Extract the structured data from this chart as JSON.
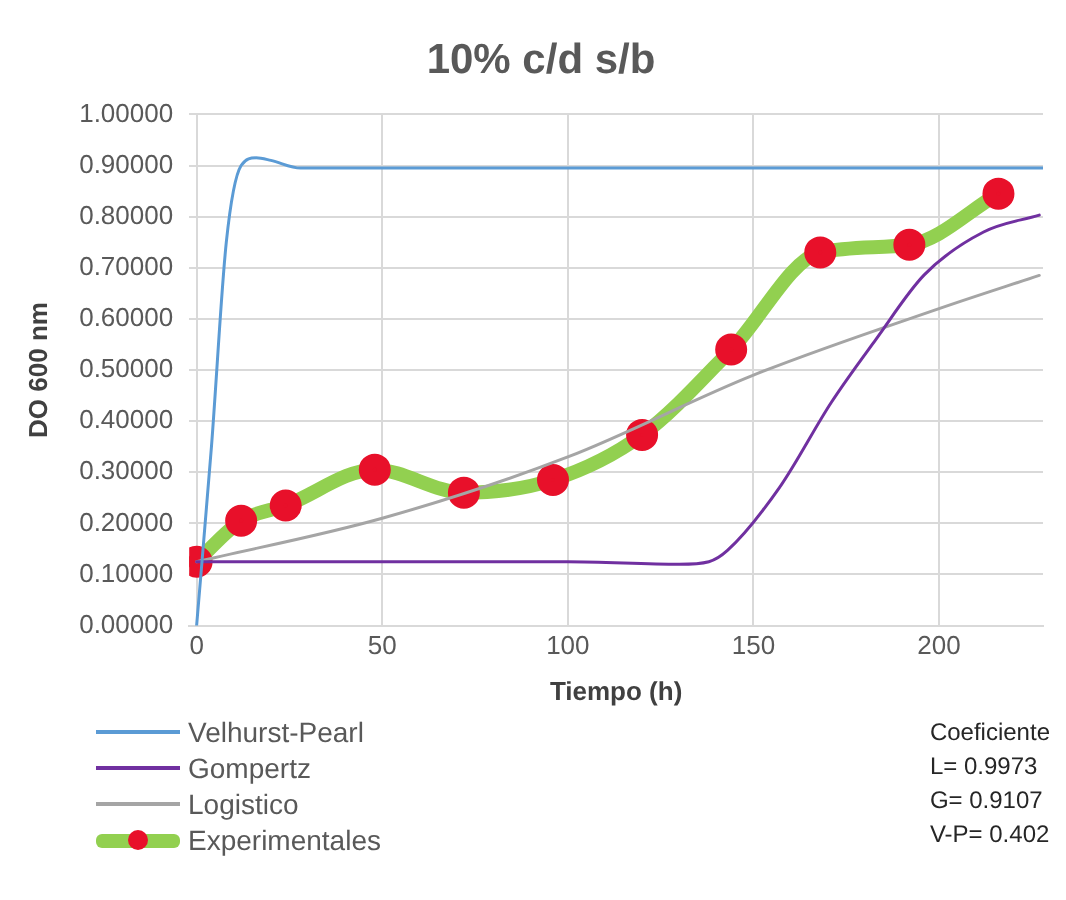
{
  "chart_data": {
    "type": "line",
    "title": "10% c/d s/b",
    "xlabel": "Tiempo (h)",
    "ylabel": "DO 600 nm",
    "xlim": [
      -2,
      228
    ],
    "xticks": [
      0,
      50,
      100,
      150,
      200
    ],
    "ylim": [
      0,
      1
    ],
    "yticks": [
      {
        "value": 0,
        "label": "0.00000"
      },
      {
        "value": 0.1,
        "label": "0.10000"
      },
      {
        "value": 0.2,
        "label": "0.20000"
      },
      {
        "value": 0.3,
        "label": "0.30000"
      },
      {
        "value": 0.4,
        "label": "0.40000"
      },
      {
        "value": 0.5,
        "label": "0.50000"
      },
      {
        "value": 0.6,
        "label": "0.60000"
      },
      {
        "value": 0.7,
        "label": "0.70000"
      },
      {
        "value": 0.8,
        "label": "0.80000"
      },
      {
        "value": 0.9,
        "label": "0.90000"
      },
      {
        "value": 1,
        "label": "1.00000"
      }
    ],
    "grid": true,
    "legend": "bottom",
    "marker": "none",
    "line_style": "solid",
    "series": [
      {
        "name": "Velhurst-Pearl",
        "color": "#5b9bd5",
        "x": [
          0,
          4,
          8,
          12,
          16,
          20,
          28,
          228
        ],
        "values": [
          0,
          0.35,
          0.75,
          0.9,
          0.915,
          0.91,
          0.895,
          0.895
        ]
      },
      {
        "name": "Gompertz",
        "color": "#7030a0",
        "x": [
          0,
          100,
          130,
          138,
          143,
          157,
          171,
          183,
          196,
          212,
          227
        ],
        "values": [
          0.125,
          0.125,
          0.12,
          0.125,
          0.147,
          0.27,
          0.437,
          0.56,
          0.686,
          0.77,
          0.803
        ]
      },
      {
        "name": "Logistico",
        "color": "#a5a5a5",
        "x": [
          0,
          50,
          100,
          150,
          200,
          227
        ],
        "values": [
          0.125,
          0.21,
          0.33,
          0.49,
          0.62,
          0.685
        ]
      },
      {
        "name": "Experimentales",
        "color": "#92d050",
        "marker": "circle",
        "colors": [
          "#e8102a",
          "#e8102a",
          "#e8102a",
          "#e8102a",
          "#e8102a",
          "#e8102a",
          "#e8102a",
          "#e8102a",
          "#e8102a",
          "#e8102a",
          "#e8102a"
        ],
        "x": [
          0,
          12,
          24,
          48,
          72,
          96,
          120,
          144,
          168,
          192,
          216
        ],
        "values": [
          0.125,
          0.205,
          0.235,
          0.305,
          0.26,
          0.285,
          0.373,
          0.54,
          0.73,
          0.745,
          0.845
        ]
      }
    ],
    "annotations": [
      "Coeficiente",
      "L= 0.9973",
      "G= 0.9107",
      "V-P= 0.402"
    ]
  }
}
